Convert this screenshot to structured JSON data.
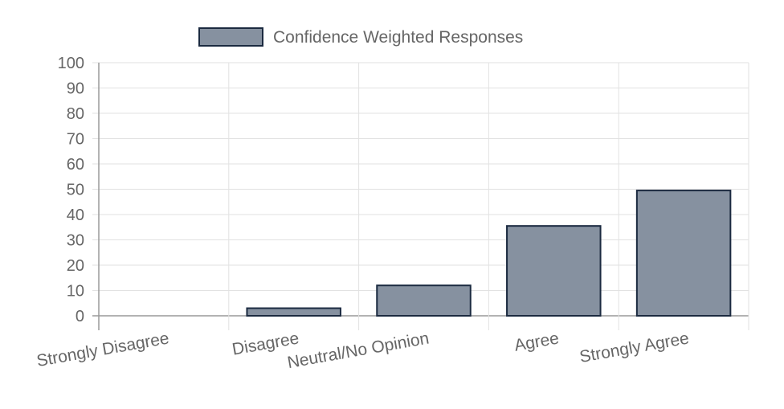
{
  "chart_data": {
    "type": "bar",
    "categories": [
      "Strongly Disagree",
      "Disagree",
      "Neutral/No Opinion",
      "Agree",
      "Strongly Agree"
    ],
    "series": [
      {
        "name": "Confidence Weighted Responses",
        "values": [
          0,
          3,
          12,
          35.5,
          49.5
        ],
        "color": "#8691a0",
        "border_color": "#1b2a40"
      }
    ],
    "ylim": [
      0,
      100
    ],
    "yticks": [
      0,
      10,
      20,
      30,
      40,
      50,
      60,
      70,
      80,
      90,
      100
    ],
    "grid": true,
    "legend_position": "top-center"
  }
}
